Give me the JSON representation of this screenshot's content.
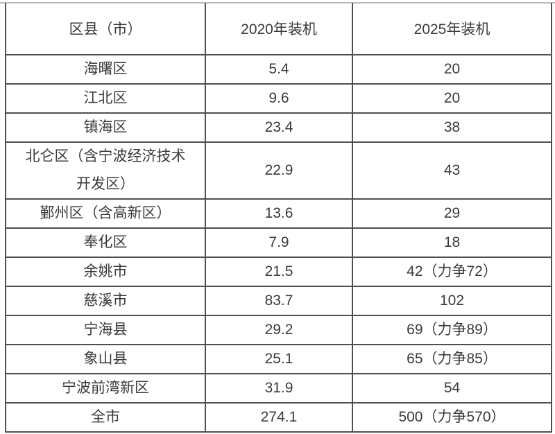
{
  "page": {
    "background": "#ffffff",
    "top_rule_color": "#b8b8b8"
  },
  "table": {
    "border_color": "#4f4f4f",
    "text_color": "#3a3a3a",
    "columns": [
      "区县（市）",
      "2020年装机",
      "2025年装机"
    ],
    "rows": [
      {
        "district": "海曙区",
        "y2020": "5.4",
        "y2025": "20"
      },
      {
        "district": "江北区",
        "y2020": "9.6",
        "y2025": "20"
      },
      {
        "district": "镇海区",
        "y2020": "23.4",
        "y2025": "38"
      },
      {
        "district": "北仑区（含宁波经济技术开发区）",
        "y2020": "22.9",
        "y2025": "43"
      },
      {
        "district": "鄞州区（含高新区）",
        "y2020": "13.6",
        "y2025": "29"
      },
      {
        "district": "奉化区",
        "y2020": "7.9",
        "y2025": "18"
      },
      {
        "district": "余姚市",
        "y2020": "21.5",
        "y2025": "42（力争72）"
      },
      {
        "district": "慈溪市",
        "y2020": "83.7",
        "y2025": "102"
      },
      {
        "district": "宁海县",
        "y2020": "29.2",
        "y2025": "69（力争89）"
      },
      {
        "district": "象山县",
        "y2020": "25.1",
        "y2025": "65（力争85）"
      },
      {
        "district": "宁波前湾新区",
        "y2020": "31.9",
        "y2025": "54"
      },
      {
        "district": "全市",
        "y2020": "274.1",
        "y2025": "500（力争570）"
      }
    ]
  }
}
